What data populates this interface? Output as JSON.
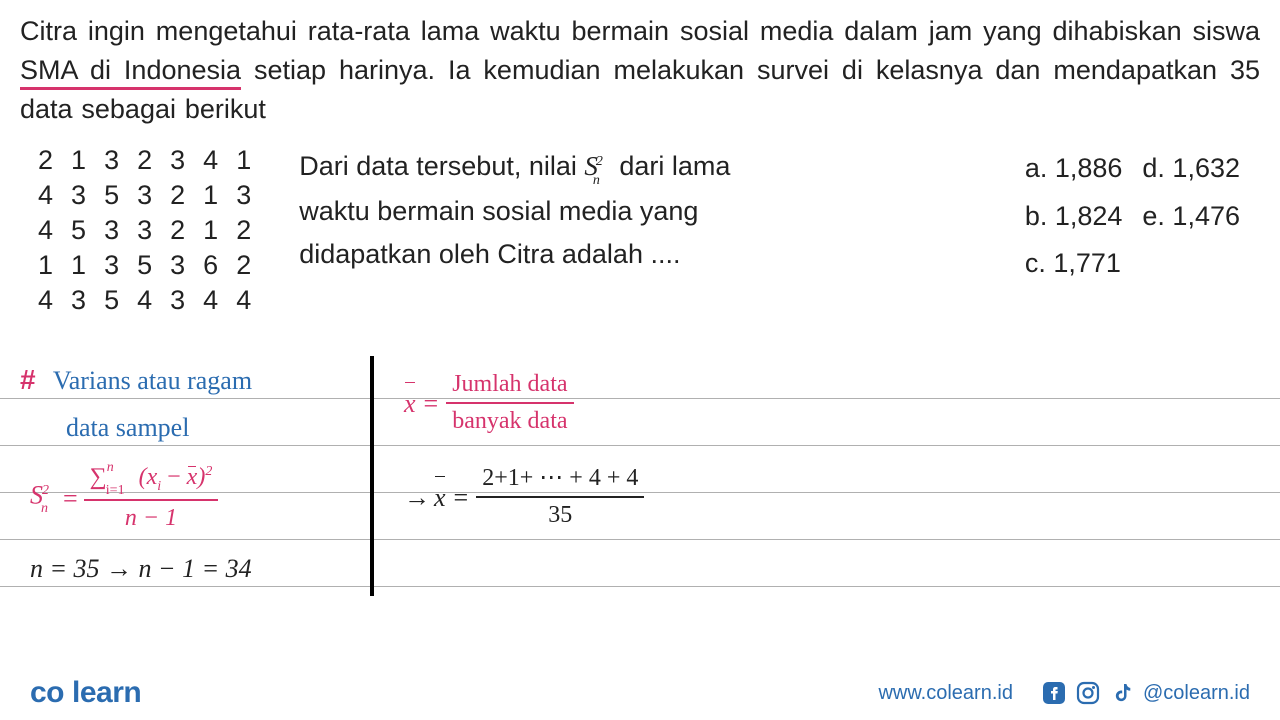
{
  "question": {
    "line": "Citra ingin mengetahui rata-rata lama waktu bermain sosial media dalam jam yang dihabiskan siswa SMA di Indonesia setiap harinya. Ia kemudian melakukan survei di kelasnya dan mendapatkan 35 data sebagai berikut",
    "part1": "Citra ingin mengetahui rata-rata lama waktu bermain sosial media dalam jam yang dihabiskan siswa ",
    "underlined": "SMA di Indonesia",
    "part2": " setiap harinya. Ia kemudian melakukan survei di kelasnya dan mendapatkan 35 data sebagai berikut",
    "font_size": 27,
    "text_color": "#222222",
    "underline_color": "#d6336c"
  },
  "data_table": {
    "rows": [
      [
        "2",
        "1",
        "3",
        "2",
        "3",
        "4",
        "1"
      ],
      [
        "4",
        "3",
        "5",
        "3",
        "2",
        "1",
        "3"
      ],
      [
        "4",
        "5",
        "3",
        "3",
        "2",
        "1",
        "2"
      ],
      [
        "1",
        "1",
        "3",
        "5",
        "3",
        "6",
        "2"
      ],
      [
        "4",
        "3",
        "5",
        "4",
        "3",
        "4",
        "4"
      ]
    ],
    "cell_font_size": 27
  },
  "middle_q": {
    "line1_pre": "Dari data tersebut, nilai ",
    "line1_post": " dari lama",
    "symbol_S": "S",
    "symbol_sub": "n",
    "symbol_sup": "2",
    "line2": " waktu bermain sosial media yang",
    "line3": "didapatkan oleh Citra adalah ...."
  },
  "answers": {
    "items_col1": [
      {
        "label": "a.",
        "value": "1,886"
      },
      {
        "label": "b.",
        "value": "1,824"
      },
      {
        "label": "c.",
        "value": "1,771"
      }
    ],
    "items_col2": [
      {
        "label": "d.",
        "value": "1,632"
      },
      {
        "label": "e.",
        "value": "1,476"
      }
    ],
    "font_size": 27
  },
  "notebook": {
    "line_color": "#b0b0b0",
    "line_spacing": 47,
    "divider_color": "#000000",
    "left": {
      "hash": "#",
      "title1": "Varians atau ragam",
      "title2": "data sampel",
      "title_color": "#2b6cb0",
      "formula": {
        "lhs_S": "S",
        "lhs_sub": "n",
        "lhs_sup": "2",
        "eq": " = ",
        "num_sigma": "∑",
        "num_sigma_sup": "n",
        "num_sigma_sub": "i=1",
        "num_rest_pre": "(x",
        "num_rest_sub": "i",
        "num_rest_mid": " − ",
        "num_rest_post": ")",
        "num_rest_sup2": "2",
        "den": "n − 1",
        "color": "#d6336c"
      },
      "nline": "n = 35   → n − 1 = 34"
    },
    "right": {
      "mean_formula": {
        "lhs": "x",
        "eq": " = ",
        "num": "Jumlah data",
        "den": "banyak data",
        "color": "#d6336c"
      },
      "calc": {
        "arrow": "→ ",
        "lhs": "x",
        "eq": " = ",
        "num": "2+1+ ⋯ + 4 + 4",
        "den": "35"
      }
    }
  },
  "footer": {
    "logo_pre": "co",
    "logo_post": "learn",
    "logo_color": "#2b6cb0",
    "site": "www.colearn.id",
    "handle": "@colearn.id",
    "icon_color": "#2b6cb0"
  }
}
